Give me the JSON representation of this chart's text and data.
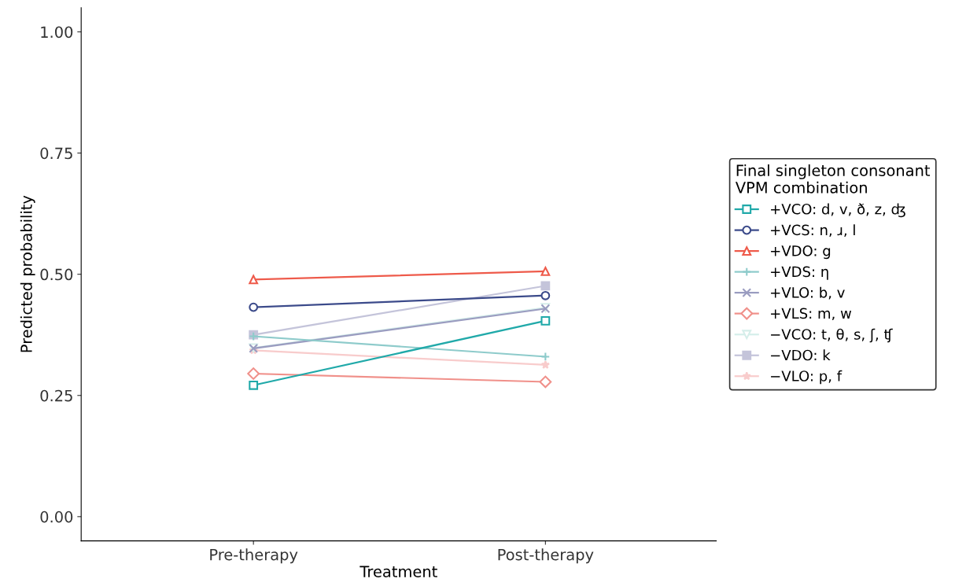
{
  "chart_data": {
    "type": "line",
    "xlabel": "Treatment",
    "ylabel": "Predicted probability",
    "legend_title": "Final singleton consonant\nVPM combination",
    "categories": [
      "Pre-therapy",
      "Post-therapy"
    ],
    "ylim": [
      -0.05,
      1.05
    ],
    "yticks": [
      {
        "value": 0,
        "label": "0.00"
      },
      {
        "value": 0.25,
        "label": "0.25"
      },
      {
        "value": 0.5,
        "label": "0.50"
      },
      {
        "value": 0.75,
        "label": "0.75"
      },
      {
        "value": 1,
        "label": "1.00"
      }
    ],
    "grid": false,
    "legend": "right",
    "line_style": "solid",
    "series": [
      {
        "name": "+VCO: d, v, ð, z, ʤ",
        "color": "#20a9a9",
        "marker": "square",
        "values": [
          0.271,
          0.404
        ]
      },
      {
        "name": "+VCS: n, ɹ, l",
        "color": "#3b4a8a",
        "marker": "circle",
        "values": [
          0.432,
          0.456
        ]
      },
      {
        "name": "+VDO: g",
        "color": "#ee5a4a",
        "marker": "triangle",
        "values": [
          0.489,
          0.506
        ]
      },
      {
        "name": "+VDS: η",
        "color": "#8ecbcb",
        "marker": "plus",
        "values": [
          0.372,
          0.33
        ]
      },
      {
        "name": "+VLO: b, v",
        "color": "#9a9cc0",
        "marker": "cross",
        "values": [
          0.347,
          0.429
        ]
      },
      {
        "name": "+VLS: m, w",
        "color": "#f0908a",
        "marker": "diamond",
        "values": [
          0.295,
          0.278
        ]
      },
      {
        "name": "−VCO: t, θ, s, ʃ, ʧ",
        "color": "#d5eeea",
        "marker": "triangle_down",
        "values": [
          0.348,
          0.431
        ]
      },
      {
        "name": "−VDO: k",
        "color": "#c4c4da",
        "marker": "square_filled",
        "values": [
          0.375,
          0.476
        ]
      },
      {
        "name": "−VLO: p, f",
        "color": "#f8cccc",
        "marker": "star",
        "values": [
          0.343,
          0.313
        ]
      }
    ]
  }
}
